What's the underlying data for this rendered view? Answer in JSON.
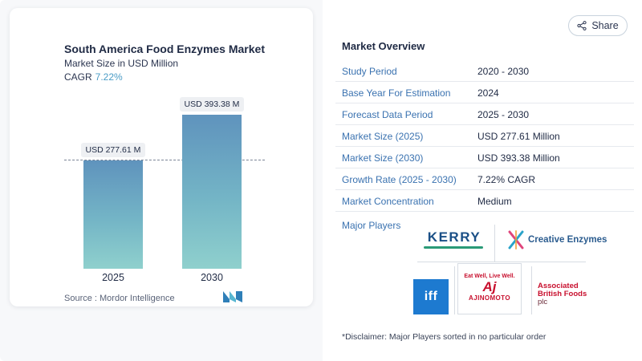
{
  "chart": {
    "title": "South America Food Enzymes Market",
    "subtitle": "Market Size in USD Million",
    "cagr_label": "CAGR",
    "cagr_value": "7.22%",
    "source": "Source : Mordor Intelligence"
  },
  "chart_data": {
    "type": "bar",
    "title": "South America Food Enzymes Market",
    "subtitle": "Market Size in USD Million",
    "categories": [
      "2025",
      "2030"
    ],
    "values": [
      277.61,
      393.38
    ],
    "data_labels": [
      "USD 277.61 M",
      "USD 393.38 M"
    ],
    "ylim": [
      0,
      393.38
    ],
    "grid": false,
    "colors": {
      "bar_top": "#5f93bd",
      "bar_bottom": "#8fd0cd"
    }
  },
  "share": {
    "label": "Share",
    "icon": "share-icon"
  },
  "overview": {
    "title": "Market Overview",
    "rows": [
      {
        "key": "Study Period",
        "value": "2020 - 2030"
      },
      {
        "key": "Base Year For Estimation",
        "value": "2024"
      },
      {
        "key": "Forecast Data Period",
        "value": "2025 - 2030"
      },
      {
        "key": "Market Size (2025)",
        "value": "USD 277.61 Million"
      },
      {
        "key": "Market Size (2030)",
        "value": "USD 393.38 Million"
      },
      {
        "key": "Growth Rate (2025 - 2030)",
        "value": "7.22% CAGR"
      },
      {
        "key": "Market Concentration",
        "value": "Medium"
      }
    ]
  },
  "players": {
    "label": "Major Players",
    "kerry": "KERRY",
    "creative": "Creative Enzymes",
    "iff": "iff",
    "ajinomoto_tag": "Eat Well, Live Well.",
    "ajinomoto_mark": "Aj",
    "ajinomoto_name": "AJINOMOTO",
    "abf_line1": "Associated",
    "abf_line2": "British Foods",
    "abf_line3": "plc"
  },
  "disclaimer": "*Disclaimer: Major Players sorted in no particular order",
  "colors": {
    "accent": "#3a72b0",
    "cagr": "#4a9cc6",
    "brand_red": "#c8102e",
    "iff_blue": "#1d7ad0"
  }
}
